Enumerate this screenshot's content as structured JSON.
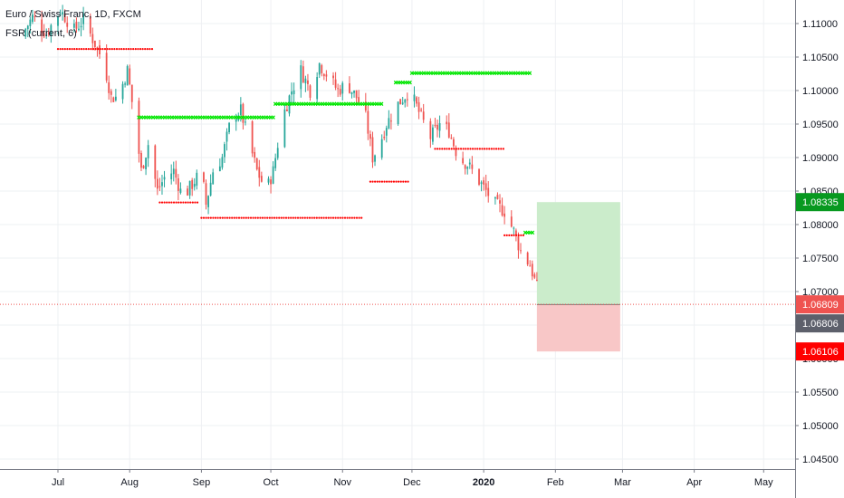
{
  "legend": {
    "symbol": "Euro / Swiss Franc, 1D, FXCM",
    "indicator": "FSR (current, 6)"
  },
  "colors": {
    "up": "#26a69a",
    "down": "#ef5350",
    "support_marker": "#ff0000",
    "resistance_marker": "#00e600",
    "target_zone": "#c8ebc8",
    "stop_zone": "#f8c4c4",
    "last_price_line": "#ef5350",
    "target_badge": "#089920",
    "last_badge": "#ef5350",
    "current_badge": "#5d606b",
    "stop_badge": "#ff0000",
    "grid": "#eef0f3",
    "axis_text": "#131722"
  },
  "chart_data": {
    "type": "candlestick",
    "title": "Euro / Swiss Franc, 1D, FXCM",
    "indicator": "FSR (current, 6)",
    "xlabel": "",
    "ylabel": "",
    "ylim": [
      1.043,
      1.113
    ],
    "grid": true,
    "y_ticks": [
      "1.11000",
      "1.10500",
      "1.10000",
      "1.09500",
      "1.09000",
      "1.08500",
      "1.08000",
      "1.07500",
      "1.07000",
      "1.06500",
      "1.06000",
      "1.05500",
      "1.05000",
      "1.04500"
    ],
    "x_tick_labels": [
      {
        "label": "Jul",
        "date": "2019-07-01"
      },
      {
        "label": "Aug",
        "date": "2019-08-01"
      },
      {
        "label": "Sep",
        "date": "2019-09-01"
      },
      {
        "label": "Oct",
        "date": "2019-10-01"
      },
      {
        "label": "Nov",
        "date": "2019-11-01"
      },
      {
        "label": "Dec",
        "date": "2019-12-01"
      },
      {
        "label": "2020",
        "date": "2020-01-01"
      },
      {
        "label": "Feb",
        "date": "2020-02-01"
      },
      {
        "label": "Mar",
        "date": "2020-03-01"
      },
      {
        "label": "Apr",
        "date": "2020-04-01"
      },
      {
        "label": "May",
        "date": "2020-05-01"
      }
    ],
    "price_labels": {
      "target": "1.08335",
      "last": "1.06809",
      "current": "1.06806",
      "stop": "1.06106"
    },
    "price_levels": {
      "target": 1.08335,
      "last": 1.06809,
      "current": 1.06806,
      "stop": 1.06106
    },
    "position": {
      "start": "2020-01-24",
      "end": "2020-02-29",
      "entry": 1.06806,
      "target": 1.08335,
      "stop": 1.06106
    },
    "close_path": [
      [
        "2019-06-15",
        1.108
      ],
      [
        "2019-06-20",
        1.111
      ],
      [
        "2019-06-26",
        1.1085
      ],
      [
        "2019-07-02",
        1.112
      ],
      [
        "2019-07-08",
        1.109
      ],
      [
        "2019-07-12",
        1.1105
      ],
      [
        "2019-07-17",
        1.107
      ],
      [
        "2019-07-21",
        1.104
      ],
      [
        "2019-07-24",
        1.099
      ],
      [
        "2019-07-27",
        1.099
      ],
      [
        "2019-07-31",
        1.103
      ],
      [
        "2019-08-03",
        1.096
      ],
      [
        "2019-08-06",
        1.088
      ],
      [
        "2019-08-09",
        1.092
      ],
      [
        "2019-08-13",
        1.085
      ],
      [
        "2019-08-16",
        1.087
      ],
      [
        "2019-08-20",
        1.088
      ],
      [
        "2019-08-24",
        1.084
      ],
      [
        "2019-08-28",
        1.086
      ],
      [
        "2019-09-01",
        1.088
      ],
      [
        "2019-09-03",
        1.083
      ],
      [
        "2019-09-06",
        1.088
      ],
      [
        "2019-09-10",
        1.09
      ],
      [
        "2019-09-14",
        1.096
      ],
      [
        "2019-09-18",
        1.097
      ],
      [
        "2019-09-21",
        1.093
      ],
      [
        "2019-09-25",
        1.088
      ],
      [
        "2019-09-29",
        1.085
      ],
      [
        "2019-10-02",
        1.088
      ],
      [
        "2019-10-06",
        1.096
      ],
      [
        "2019-10-10",
        1.1
      ],
      [
        "2019-10-14",
        1.103
      ],
      [
        "2019-10-18",
        1.1
      ],
      [
        "2019-10-22",
        1.104
      ],
      [
        "2019-10-26",
        1.102
      ],
      [
        "2019-10-30",
        1.1
      ],
      [
        "2019-11-03",
        1.101
      ],
      [
        "2019-11-07",
        1.099
      ],
      [
        "2019-11-11",
        1.096
      ],
      [
        "2019-11-14",
        1.09
      ],
      [
        "2019-11-17",
        1.092
      ],
      [
        "2019-11-20",
        1.095
      ],
      [
        "2019-11-25",
        1.098
      ],
      [
        "2019-11-30",
        1.1
      ],
      [
        "2019-12-05",
        1.096
      ],
      [
        "2019-12-09",
        1.093
      ],
      [
        "2019-12-13",
        1.095
      ],
      [
        "2019-12-17",
        1.094
      ],
      [
        "2019-12-21",
        1.09
      ],
      [
        "2019-12-25",
        1.089
      ],
      [
        "2019-12-29",
        1.087
      ],
      [
        "2020-01-02",
        1.085
      ],
      [
        "2020-01-06",
        1.083
      ],
      [
        "2020-01-10",
        1.082
      ],
      [
        "2020-01-14",
        1.079
      ],
      [
        "2020-01-17",
        1.076
      ],
      [
        "2020-01-21",
        1.074
      ],
      [
        "2020-01-24",
        1.0706
      ],
      [
        "2020-01-25",
        1.068
      ]
    ],
    "fsr_levels": [
      {
        "type": "support",
        "start": "2019-07-01",
        "end": "2019-08-11",
        "price": 1.1062
      },
      {
        "type": "resistance",
        "start": "2019-08-05",
        "end": "2019-10-03",
        "price": 1.096
      },
      {
        "type": "support",
        "start": "2019-08-14",
        "end": "2019-08-31",
        "price": 1.0833
      },
      {
        "type": "support",
        "start": "2019-09-01",
        "end": "2019-11-10",
        "price": 1.081
      },
      {
        "type": "resistance",
        "start": "2019-10-03",
        "end": "2019-11-18",
        "price": 1.098
      },
      {
        "type": "support",
        "start": "2019-11-13",
        "end": "2019-11-30",
        "price": 1.0864
      },
      {
        "type": "resistance",
        "start": "2019-11-24",
        "end": "2019-12-01",
        "price": 1.1012
      },
      {
        "type": "resistance",
        "start": "2019-12-01",
        "end": "2020-01-21",
        "price": 1.1026
      },
      {
        "type": "support",
        "start": "2019-12-11",
        "end": "2020-01-10",
        "price": 1.0913
      },
      {
        "type": "support",
        "start": "2020-01-10",
        "end": "2020-01-19",
        "price": 1.0784
      },
      {
        "type": "resistance",
        "start": "2020-01-19",
        "end": "2020-01-23",
        "price": 1.0788
      }
    ]
  }
}
